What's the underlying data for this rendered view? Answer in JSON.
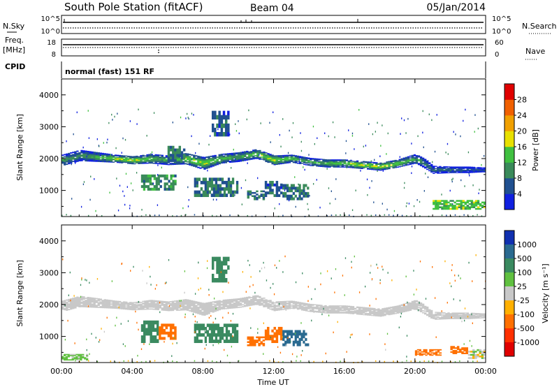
{
  "header": {
    "station": "South Pole Station (fitACF)",
    "beam": "Beam 04",
    "date": "05/Jan/2014"
  },
  "top_panels": {
    "nsky_label": "N.Sky",
    "nsearch_label": "N.Search",
    "freq_label_1": "Freq.",
    "freq_label_2": "[MHz]",
    "nave_label": "Nave",
    "cpid_label": "CPID",
    "cpid_value": "normal (fast) 151 RF",
    "noise_left_ticks": [
      "10^5",
      "10^0"
    ],
    "noise_right_ticks": [
      "10^5",
      "10^0"
    ],
    "freq_left_ticks": [
      "18",
      "8"
    ],
    "freq_right_ticks": [
      "60",
      "0"
    ]
  },
  "colorbars": {
    "power": {
      "label": "Power [dB]",
      "ticks": [
        "4",
        "8",
        "12",
        "16",
        "20",
        "24",
        "28"
      ],
      "colors": [
        "#1020e0",
        "#205090",
        "#3a8a5a",
        "#40c040",
        "#e8e000",
        "#f0a000",
        "#f06000",
        "#e00000"
      ]
    },
    "velocity": {
      "label": "Velocity [m s⁻¹]",
      "ticks": [
        "1000",
        "500",
        "100",
        "25",
        "-25",
        "-100",
        "-500",
        "-1000"
      ],
      "colors": [
        "#1030b0",
        "#2a6a90",
        "#3a8a60",
        "#60c040",
        "#c8c8c8",
        "#ffb000",
        "#ff7000",
        "#ff3000",
        "#e00000"
      ]
    }
  },
  "chart_data": [
    {
      "type": "heatmap",
      "name": "Power",
      "ylabel": "Slant Range [km]",
      "xlabel": "",
      "x_ticks": [
        "00:00",
        "04:00",
        "08:00",
        "12:00",
        "16:00",
        "20:00",
        "00:00"
      ],
      "y_ticks": [
        1000,
        2000,
        3000,
        4000
      ],
      "xlim": [
        0,
        24
      ],
      "ylim": [
        180,
        4500
      ],
      "grid": false,
      "band": {
        "x": [
          0,
          1,
          2,
          3,
          4,
          5,
          6,
          7,
          8,
          9,
          10,
          11,
          12,
          13,
          14,
          15,
          16,
          17,
          18,
          19,
          20,
          20.5,
          21,
          22,
          23,
          23.8
        ],
        "center_km": [
          1950,
          2100,
          2050,
          2000,
          1950,
          2000,
          1950,
          2000,
          1850,
          2000,
          2050,
          2150,
          1950,
          2000,
          1900,
          1850,
          1850,
          1800,
          1750,
          1850,
          2000,
          1850,
          1650,
          1650,
          1650,
          1650
        ],
        "width_km": [
          350,
          350,
          300,
          250,
          250,
          300,
          300,
          350,
          400,
          300,
          300,
          300,
          300,
          250,
          250,
          250,
          250,
          250,
          250,
          250,
          300,
          300,
          250,
          200,
          200,
          150
        ],
        "power_db": [
          12,
          10,
          14,
          16,
          18,
          14,
          12,
          16,
          18,
          14,
          12,
          16,
          18,
          14,
          12,
          14,
          16,
          18,
          18,
          16,
          12,
          10,
          8,
          8,
          6,
          6
        ]
      },
      "patches": [
        {
          "t0": 4.5,
          "t1": 6.5,
          "r0": 1000,
          "r1": 1500,
          "power_db": 10
        },
        {
          "t0": 7.5,
          "t1": 10.0,
          "r0": 800,
          "r1": 1400,
          "power_db": 8
        },
        {
          "t0": 10.5,
          "t1": 11.5,
          "r0": 700,
          "r1": 1000,
          "power_db": 8
        },
        {
          "t0": 11.5,
          "t1": 12.5,
          "r0": 800,
          "r1": 1300,
          "power_db": 6
        },
        {
          "t0": 12.5,
          "t1": 14.0,
          "r0": 700,
          "r1": 1200,
          "power_db": 8
        },
        {
          "t0": 6.0,
          "t1": 7.0,
          "r0": 1900,
          "r1": 2400,
          "power_db": 8
        },
        {
          "t0": 8.5,
          "t1": 9.5,
          "r0": 2700,
          "r1": 3500,
          "power_db": 6
        },
        {
          "t0": 21.0,
          "t1": 24.0,
          "r0": 400,
          "r1": 700,
          "power_db": 14
        }
      ]
    },
    {
      "type": "heatmap",
      "name": "Velocity",
      "ylabel": "Slant Range [km]",
      "xlabel": "Time UT",
      "x_ticks": [
        "00:00",
        "04:00",
        "08:00",
        "12:00",
        "16:00",
        "20:00",
        "00:00"
      ],
      "y_ticks": [
        1000,
        2000,
        3000,
        4000
      ],
      "xlim": [
        0,
        24
      ],
      "ylim": [
        180,
        4500
      ],
      "grid": false,
      "band": {
        "x": [
          0,
          1,
          2,
          3,
          4,
          5,
          6,
          7,
          8,
          9,
          10,
          11,
          12,
          13,
          14,
          15,
          16,
          17,
          18,
          19,
          20,
          20.5,
          21,
          22,
          23,
          23.8
        ],
        "center_km": [
          1950,
          2100,
          2050,
          2000,
          1950,
          2000,
          1950,
          2000,
          1850,
          2000,
          2050,
          2150,
          1950,
          2000,
          1900,
          1850,
          1850,
          1800,
          1750,
          1850,
          2000,
          1850,
          1650,
          1650,
          1650,
          1650
        ],
        "width_km": [
          350,
          350,
          300,
          250,
          250,
          300,
          300,
          350,
          400,
          300,
          300,
          300,
          300,
          250,
          250,
          250,
          250,
          250,
          250,
          250,
          300,
          300,
          250,
          200,
          200,
          150
        ],
        "velocity_ms": [
          0,
          0,
          0,
          0,
          0,
          0,
          0,
          0,
          0,
          0,
          0,
          0,
          0,
          0,
          0,
          0,
          0,
          0,
          0,
          0,
          0,
          0,
          0,
          0,
          0,
          0
        ]
      },
      "patches": [
        {
          "t0": 4.5,
          "t1": 5.5,
          "r0": 800,
          "r1": 1500,
          "velocity_ms": 150
        },
        {
          "t0": 5.5,
          "t1": 6.5,
          "r0": 900,
          "r1": 1400,
          "velocity_ms": -150
        },
        {
          "t0": 7.5,
          "t1": 10.0,
          "r0": 800,
          "r1": 1400,
          "velocity_ms": 300
        },
        {
          "t0": 10.5,
          "t1": 11.5,
          "r0": 700,
          "r1": 1000,
          "velocity_ms": -300
        },
        {
          "t0": 11.5,
          "t1": 12.5,
          "r0": 800,
          "r1": 1300,
          "velocity_ms": -400
        },
        {
          "t0": 12.5,
          "t1": 14.0,
          "r0": 700,
          "r1": 1200,
          "velocity_ms": 600
        },
        {
          "t0": 8.5,
          "t1": 9.5,
          "r0": 2700,
          "r1": 3500,
          "velocity_ms": 200
        },
        {
          "t0": 0.0,
          "t1": 1.5,
          "r0": 250,
          "r1": 450,
          "velocity_ms": 50
        },
        {
          "t0": 20.0,
          "t1": 21.5,
          "r0": 400,
          "r1": 600,
          "velocity_ms": -300
        },
        {
          "t0": 22.0,
          "t1": 23.0,
          "r0": 450,
          "r1": 700,
          "velocity_ms": -400
        },
        {
          "t0": 23.0,
          "t1": 24.0,
          "r0": 300,
          "r1": 600,
          "velocity_ms": 0
        }
      ]
    }
  ]
}
